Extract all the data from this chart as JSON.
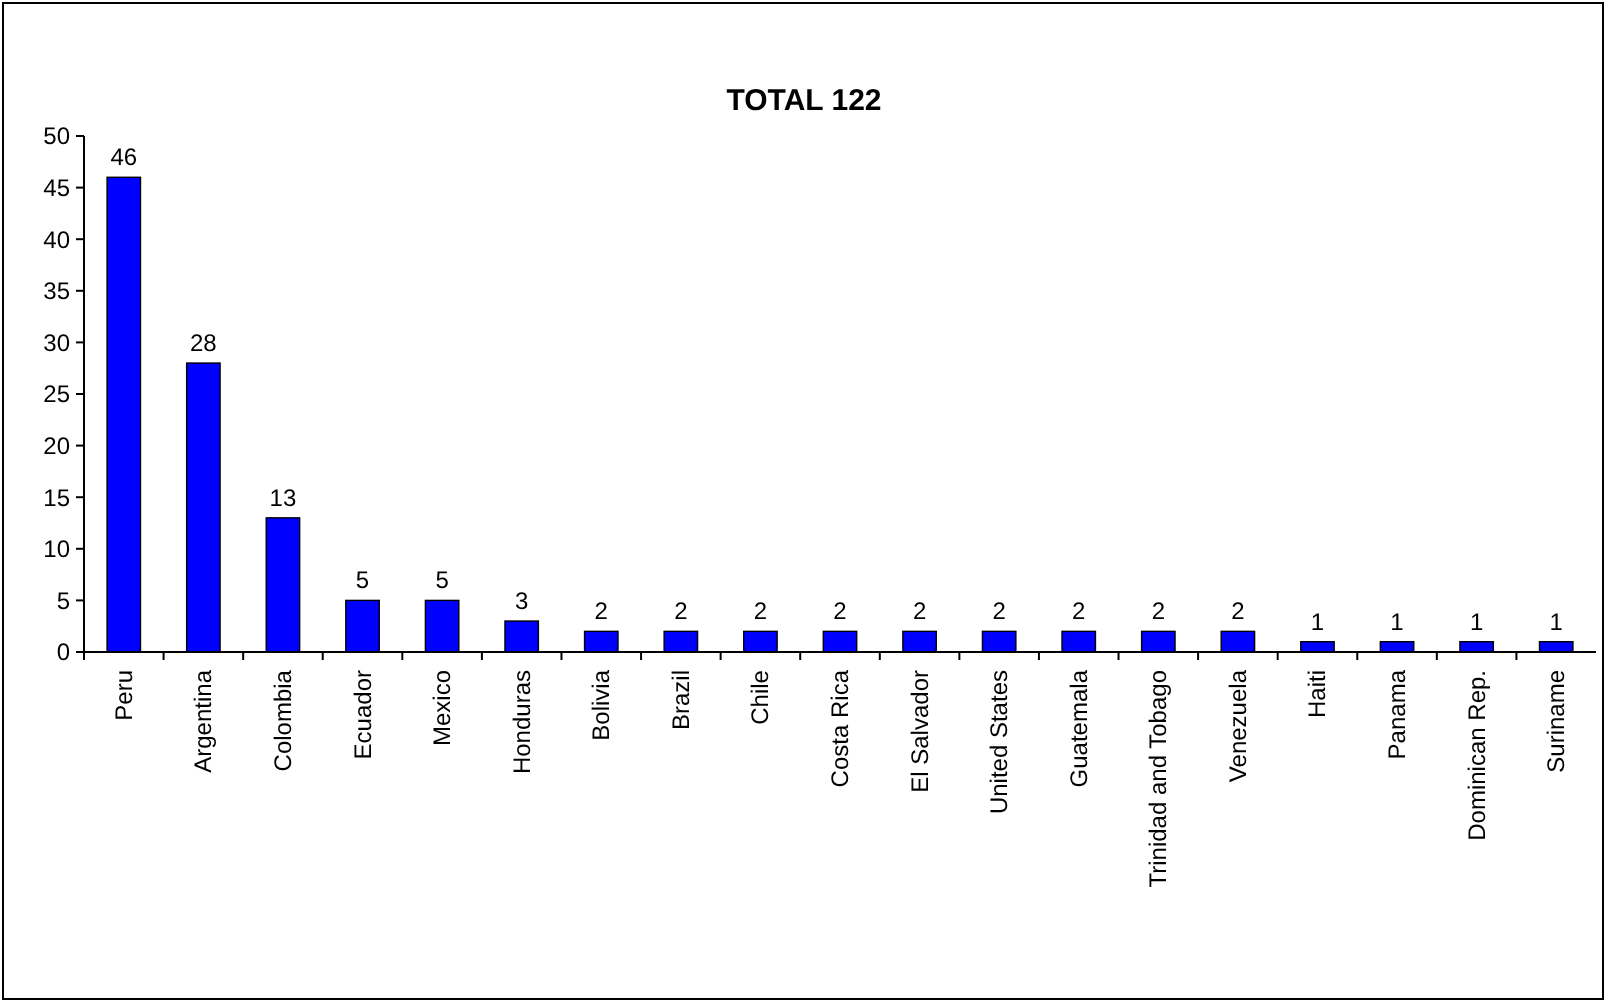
{
  "chart_data": {
    "type": "bar",
    "title": "TOTAL 122",
    "categories": [
      "Peru",
      "Argentina",
      "Colombia",
      "Ecuador",
      "Mexico",
      "Honduras",
      "Bolivia",
      "Brazil",
      "Chile",
      "Costa Rica",
      "El Salvador",
      "United States",
      "Guatemala",
      "Trinidad and Tobago",
      "Venezuela",
      "Haiti",
      "Panama",
      "Dominican Rep.",
      "Suriname"
    ],
    "values": [
      46,
      28,
      13,
      5,
      5,
      3,
      2,
      2,
      2,
      2,
      2,
      2,
      2,
      2,
      2,
      1,
      1,
      1,
      1
    ],
    "color": "#0000ff",
    "ylim": [
      0,
      50
    ],
    "yticks": [
      0,
      5,
      10,
      15,
      20,
      25,
      30,
      35,
      40,
      45,
      50
    ],
    "data_labels": true
  }
}
